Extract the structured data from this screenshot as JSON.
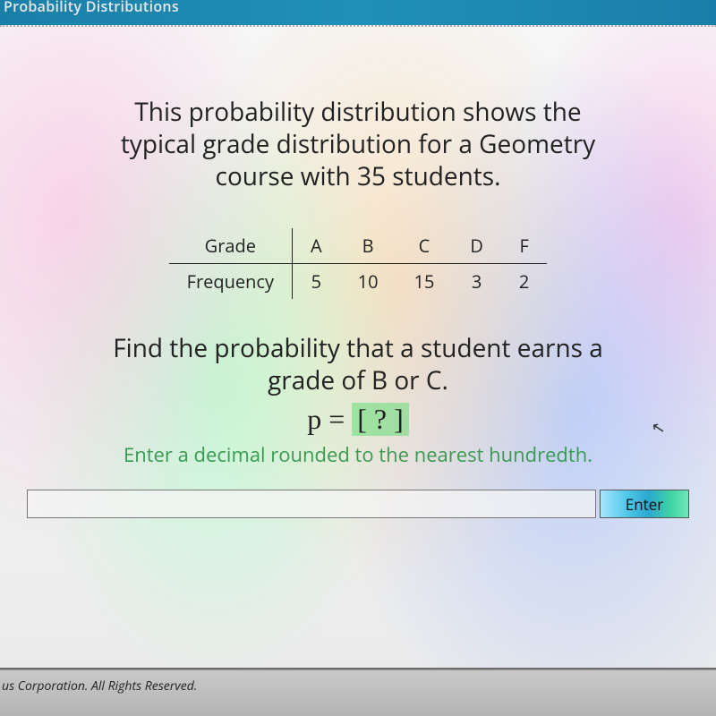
{
  "header": {
    "title": "Probability Distributions"
  },
  "problem": {
    "intro_l1": "This probability distribution shows the",
    "intro_l2": "typical grade distribution for a Geometry",
    "intro_l3": "course with 35 students.",
    "table": {
      "row1_label": "Grade",
      "row2_label": "Frequency",
      "columns": [
        "A",
        "B",
        "C",
        "D",
        "F"
      ],
      "values": [
        "5",
        "10",
        "15",
        "3",
        "2"
      ]
    },
    "question_l1": "Find the probability that a student earns a",
    "question_l2": "grade of B or C.",
    "formula_prefix": "p = ",
    "formula_box": "[ ? ]",
    "hint": "Enter a decimal rounded to the nearest hundredth."
  },
  "input": {
    "value": "",
    "placeholder": ""
  },
  "enter_button": "Enter",
  "footer": {
    "copyright": "us Corporation. All Rights Reserved."
  },
  "colors": {
    "header_bg": "#1a7fa8",
    "text": "#222222",
    "hint_text": "#3a9a52",
    "answer_box_bg": "rgba(100,220,120,0.55)",
    "footer_bg": "#bcbcbc"
  }
}
